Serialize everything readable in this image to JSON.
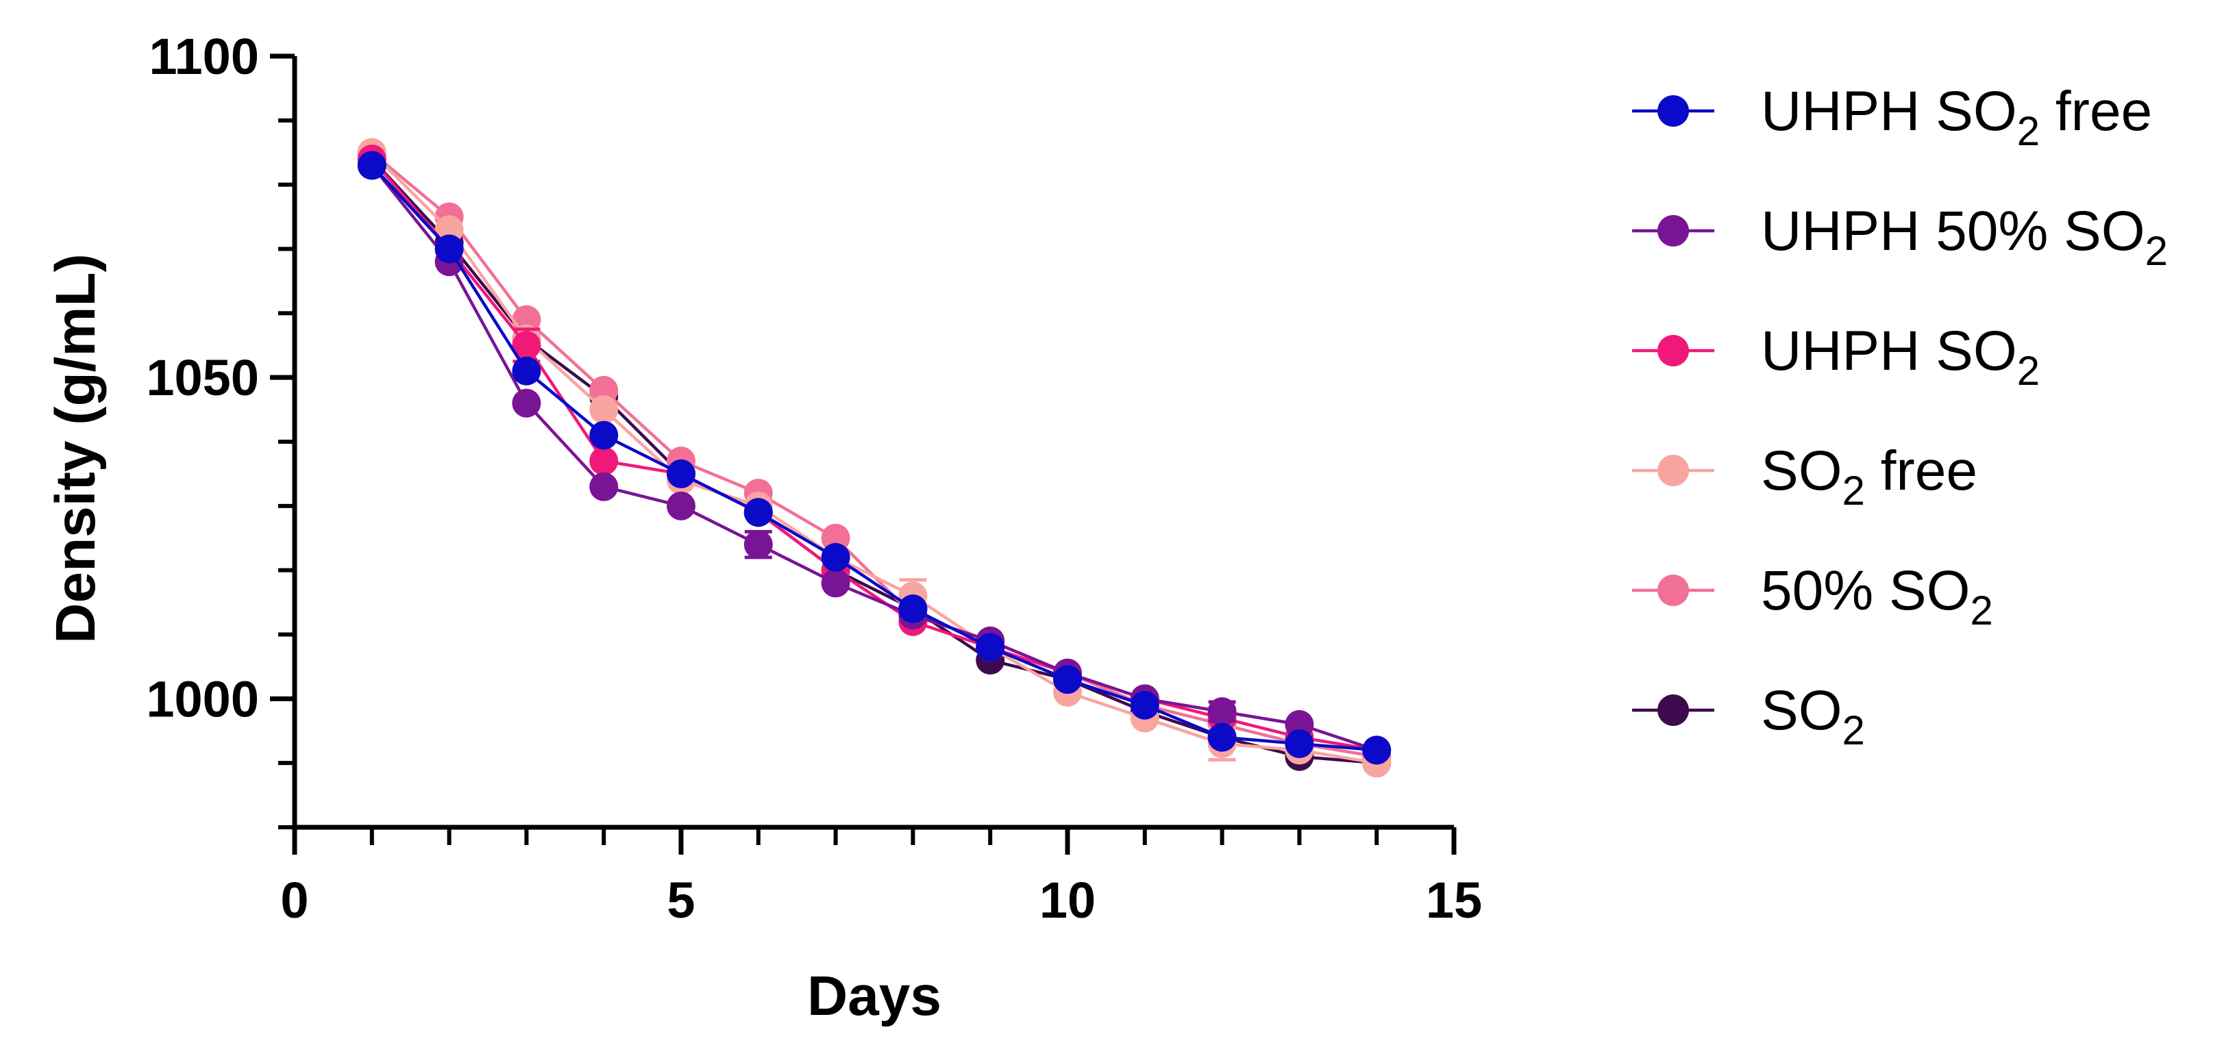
{
  "chart_data": {
    "type": "line",
    "title": "",
    "xlabel": "Days",
    "ylabel": "Density (g/mL)",
    "xlim": [
      0,
      15
    ],
    "ylim": [
      980,
      1100
    ],
    "xticks": [
      "0",
      "5",
      "10",
      "15"
    ],
    "yticks": [
      "1000",
      "1050",
      "1100"
    ],
    "x": [
      1,
      2,
      3,
      4,
      5,
      6,
      7,
      8,
      9,
      10,
      11,
      12,
      13,
      14
    ],
    "series": [
      {
        "name": "SO₂",
        "legend_main": "SO",
        "legend_sub": "2",
        "legend_tail": "",
        "color": "#3d0a4d",
        "values": [
          1084,
          1071,
          1056,
          1047,
          1035,
          1029,
          1020,
          1014,
          1006,
          1003,
          998,
          994,
          991,
          990
        ],
        "errors": [
          0,
          0,
          0,
          0,
          0,
          0,
          0,
          0,
          0,
          0,
          0,
          0,
          0,
          0
        ]
      },
      {
        "name": "50% SO₂",
        "legend_main": "50% SO",
        "legend_sub": "2",
        "legend_tail": "",
        "color": "#f27095",
        "values": [
          1085,
          1075,
          1059,
          1048,
          1037,
          1032,
          1025,
          1013,
          1009,
          1004,
          999,
          996,
          993,
          991
        ],
        "errors": [
          0,
          0,
          0,
          0,
          0,
          0,
          0,
          0,
          0,
          0,
          0,
          0,
          0,
          0
        ]
      },
      {
        "name": "SO₂ free",
        "legend_main": "SO",
        "legend_sub": "2",
        "legend_tail": " free",
        "color": "#f8a5a0",
        "values": [
          1085,
          1073,
          1056,
          1045,
          1034,
          1030,
          1022,
          1016,
          1008,
          1001,
          997,
          993,
          992,
          990
        ],
        "errors": [
          0,
          0,
          0,
          0,
          0,
          0,
          0,
          2.5,
          0,
          0,
          0,
          2.5,
          0,
          0
        ]
      },
      {
        "name": "UHPH SO₂",
        "legend_main": "UHPH SO",
        "legend_sub": "2",
        "legend_tail": "",
        "color": "#f0197a",
        "values": [
          1084,
          1070,
          1055,
          1037,
          1035,
          1029,
          1020,
          1012,
          1008,
          1004,
          1000,
          997,
          994,
          992
        ],
        "errors": [
          0,
          0,
          2.5,
          0,
          0,
          0,
          0,
          0,
          0,
          0,
          0,
          0,
          0,
          0
        ]
      },
      {
        "name": "UHPH 50% SO₂",
        "legend_main": "UHPH 50% SO",
        "legend_sub": "2",
        "legend_tail": "",
        "color": "#7a1496",
        "values": [
          1083,
          1068,
          1046,
          1033,
          1030,
          1024,
          1018,
          1013,
          1009,
          1004,
          1000,
          998,
          996,
          992
        ],
        "errors": [
          0,
          0,
          0,
          0,
          0,
          2,
          0,
          0,
          0,
          0,
          0,
          1.5,
          0,
          0
        ]
      },
      {
        "name": "UHPH SO₂ free",
        "legend_main": "UHPH SO",
        "legend_sub": "2",
        "legend_tail": " free",
        "color": "#0a0ac8",
        "values": [
          1083,
          1070,
          1051,
          1041,
          1035,
          1029,
          1022,
          1014,
          1008,
          1003,
          999,
          994,
          993,
          992
        ],
        "errors": [
          0,
          0,
          0,
          0,
          0,
          0,
          0,
          0,
          0,
          0,
          0,
          0,
          0,
          0
        ]
      }
    ],
    "legend_order": [
      5,
      4,
      3,
      2,
      1,
      0
    ],
    "legend_position": "right",
    "grid": false
  }
}
